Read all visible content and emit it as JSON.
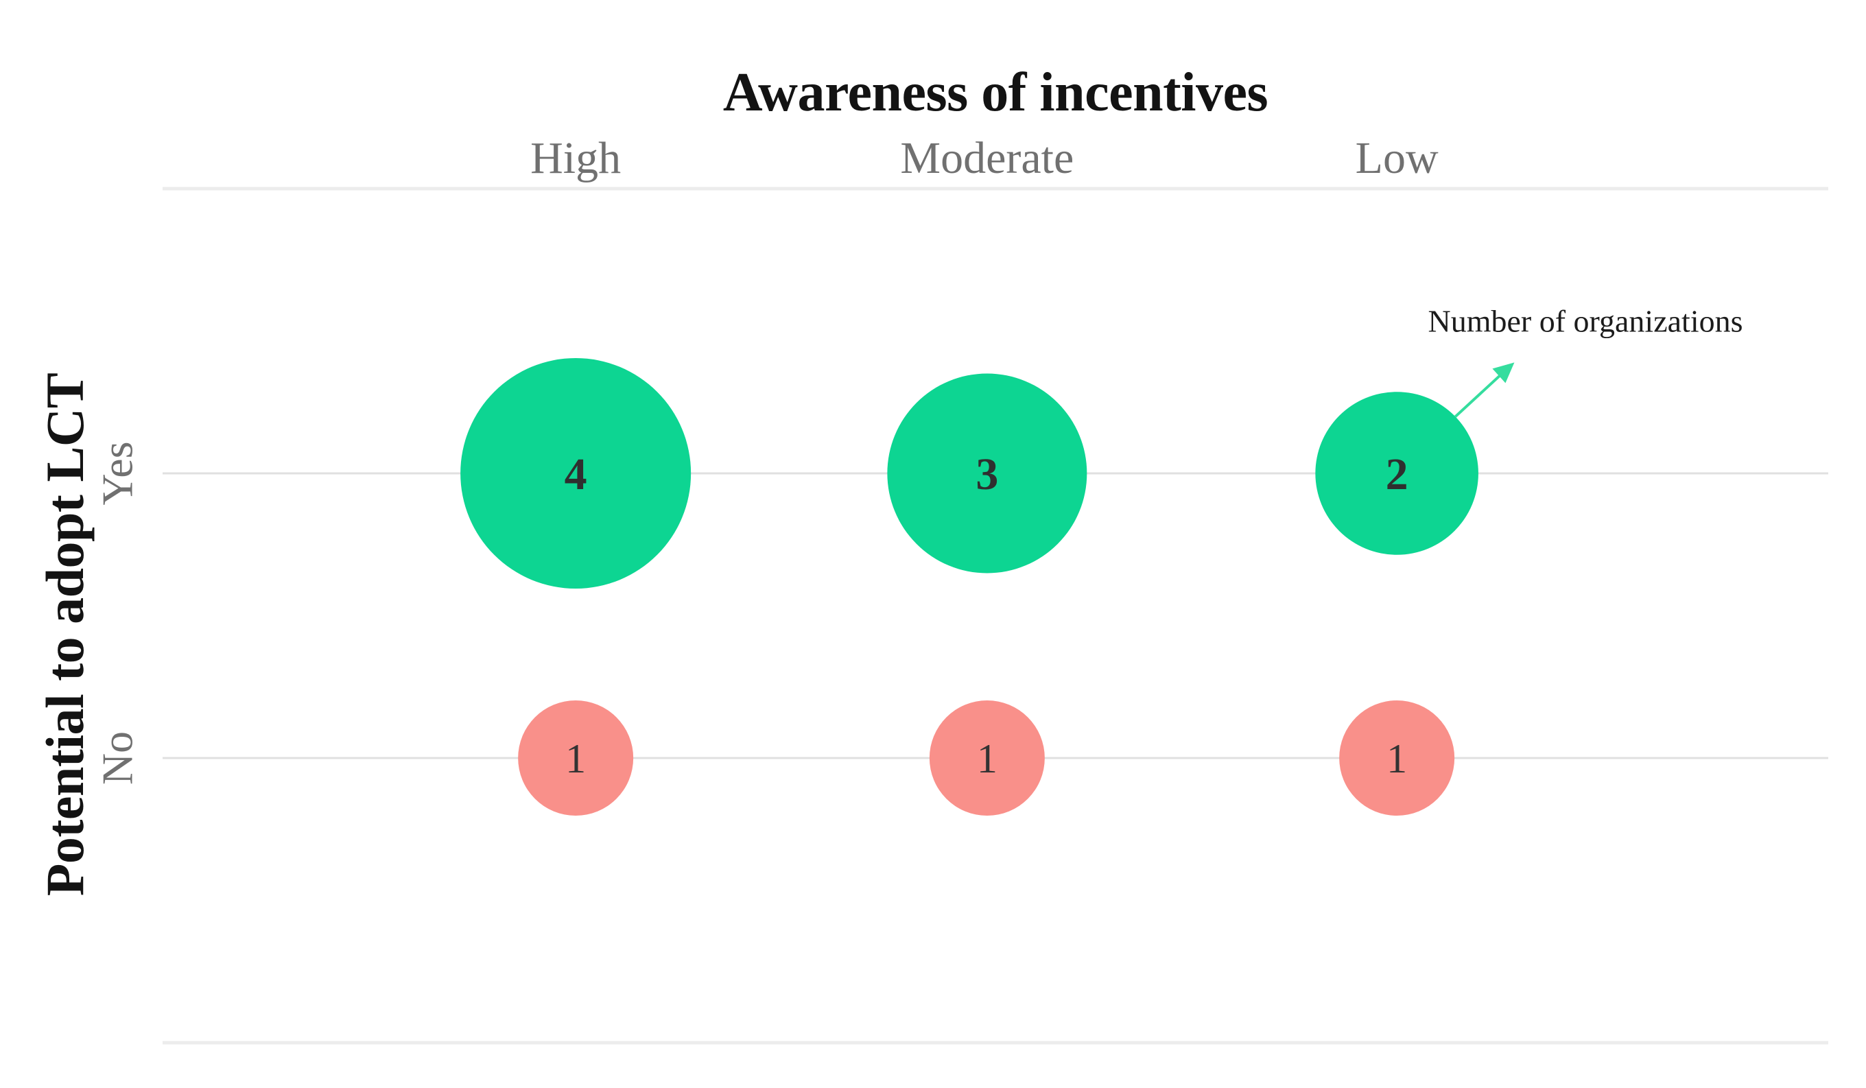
{
  "chart_data": {
    "type": "scatter",
    "subtype": "bubble-matrix",
    "title": "Awareness of incentives",
    "x_axis": {
      "title": "Awareness of incentives",
      "categories": [
        "High",
        "Moderate",
        "Low"
      ]
    },
    "y_axis": {
      "title": "Potential to adopt LCT",
      "categories": [
        "Yes",
        "No"
      ]
    },
    "series": [
      {
        "name": "Yes",
        "color": "#0dd592",
        "values": [
          4,
          3,
          2
        ]
      },
      {
        "name": "No",
        "color": "#f9908a",
        "values": [
          1,
          1,
          1
        ]
      }
    ],
    "size_encoding": "bubble radius proportional to square root of value",
    "annotation": {
      "text": "Number of organizations",
      "arrow_color": "#35dd9e",
      "points_to": {
        "column": "Low",
        "row": "Yes"
      }
    },
    "legend": "none",
    "grid": "horizontal category gridlines plus top and bottom boundary lines"
  },
  "style": {
    "background": "#ffffff",
    "title_color": "#131313",
    "category_label_color": "#707070",
    "bubble_number_color": "#2f2f2f",
    "gridline_color": "#e0e0e0",
    "boundary_line_color": "#ececec"
  }
}
